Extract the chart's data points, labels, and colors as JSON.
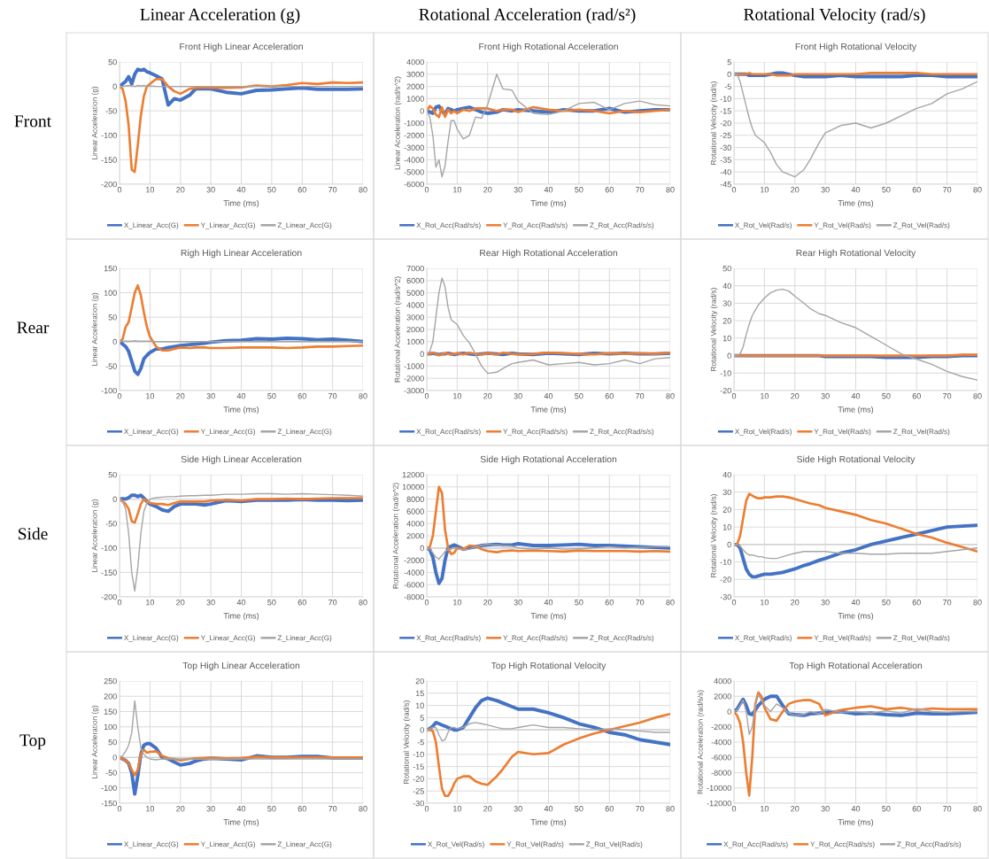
{
  "chart_data": [
    {
      "type": "line",
      "title": "Front High Linear Acceleration",
      "xlabel": "Time (ms)",
      "ylabel": "Linear Acceleration (g)",
      "annotations": [
        "Linear Acceleration (g)",
        "Front"
      ],
      "xlim": [
        0,
        80
      ],
      "xticks": [
        0,
        10,
        20,
        30,
        40,
        50,
        60,
        70,
        80
      ],
      "ylim": [
        -200,
        50
      ],
      "yticks": [
        -200,
        -150,
        -100,
        -50,
        0,
        50
      ],
      "grid": true,
      "legend": "bottom",
      "x": [
        0,
        1,
        2,
        3,
        4,
        5,
        6,
        7,
        8,
        9,
        10,
        12,
        14,
        16,
        18,
        20,
        23,
        25,
        28,
        30,
        35,
        40,
        45,
        50,
        55,
        60,
        65,
        70,
        75,
        80
      ],
      "series": [
        {
          "name": "X_Linear_Acc(G)",
          "color": "#4472c4",
          "values": [
            0,
            5,
            10,
            20,
            5,
            25,
            35,
            33,
            35,
            30,
            28,
            22,
            15,
            -38,
            -25,
            -28,
            -18,
            -5,
            -5,
            -5,
            -12,
            -15,
            -8,
            -7,
            -5,
            -3,
            -6,
            -6,
            -6,
            -5
          ]
        },
        {
          "name": "Y_Linear_Acc(G)",
          "color": "#ed7d31",
          "values": [
            0,
            -5,
            -30,
            -80,
            -170,
            -175,
            -120,
            -60,
            -20,
            0,
            5,
            15,
            15,
            0,
            -10,
            -15,
            -5,
            -3,
            -2,
            -3,
            -3,
            -2,
            2,
            0,
            3,
            7,
            5,
            8,
            7,
            8
          ]
        },
        {
          "name": "Z_Linear_Acc(G)",
          "color": "#a5a5a5",
          "values": [
            0,
            0,
            1,
            2,
            1,
            0,
            2,
            1,
            2,
            0,
            1,
            0,
            0,
            0,
            0,
            0,
            0,
            0,
            0,
            0,
            0,
            0,
            0,
            0,
            0,
            0,
            0,
            0,
            0,
            0
          ]
        }
      ]
    },
    {
      "type": "line",
      "title": "Front High Rotational Acceleration",
      "xlabel": "Time (ms)",
      "ylabel": "Linear Acceleration (rad/s^2)",
      "annotations": [
        "Rotational Acceleration (rad/s²)"
      ],
      "xlim": [
        0,
        80
      ],
      "xticks": [
        0,
        10,
        20,
        30,
        40,
        50,
        60,
        70,
        80
      ],
      "ylim": [
        -6000,
        4000
      ],
      "yticks": [
        -6000,
        -5000,
        -4000,
        -3000,
        -2000,
        -1000,
        0,
        1000,
        2000,
        3000,
        4000
      ],
      "grid": true,
      "legend": "bottom",
      "x": [
        0,
        1,
        2,
        3,
        4,
        5,
        6,
        7,
        8,
        9,
        10,
        12,
        14,
        16,
        18,
        20,
        23,
        25,
        28,
        30,
        35,
        40,
        45,
        50,
        55,
        60,
        65,
        70,
        75,
        80
      ],
      "series": [
        {
          "name": "X_Rot_Acc(Rad/s/s)",
          "color": "#4472c4",
          "values": [
            0,
            -100,
            -200,
            300,
            400,
            0,
            -300,
            200,
            100,
            0,
            100,
            200,
            300,
            100,
            -100,
            -200,
            -100,
            100,
            0,
            100,
            0,
            -100,
            100,
            0,
            0,
            200,
            -100,
            0,
            100,
            100
          ]
        },
        {
          "name": "Y_Rot_Acc(Rad/s/s)",
          "color": "#ed7d31",
          "values": [
            0,
            400,
            200,
            -300,
            -500,
            300,
            -500,
            100,
            -200,
            0,
            -200,
            100,
            0,
            200,
            200,
            200,
            0,
            100,
            100,
            -100,
            300,
            100,
            0,
            100,
            0,
            -200,
            0,
            -100,
            0,
            100
          ]
        },
        {
          "name": "Z_Rot_Acc(Rad/s/s)",
          "color": "#a5a5a5",
          "values": [
            0,
            -500,
            -2000,
            -4600,
            -4000,
            -5400,
            -4500,
            -2500,
            -800,
            -800,
            -1500,
            -2300,
            -2000,
            -500,
            -600,
            500,
            3000,
            1800,
            1700,
            800,
            -200,
            -300,
            0,
            600,
            700,
            100,
            600,
            800,
            500,
            400
          ]
        }
      ]
    },
    {
      "type": "line",
      "title": "Front High Rotational Velocity",
      "xlabel": "Time (ms)",
      "ylabel": "Rotational Velocity (rad/s)",
      "annotations": [
        "Rotational Velocity (rad/s)"
      ],
      "xlim": [
        0,
        80
      ],
      "xticks": [
        0,
        10,
        20,
        30,
        40,
        50,
        60,
        70,
        80
      ],
      "ylim": [
        -45,
        5
      ],
      "yticks": [
        -45,
        -40,
        -35,
        -30,
        -25,
        -20,
        -15,
        -10,
        -5,
        0,
        5
      ],
      "grid": true,
      "legend": "bottom",
      "x": [
        0,
        1,
        2,
        3,
        4,
        5,
        6,
        7,
        8,
        9,
        10,
        12,
        14,
        16,
        18,
        20,
        23,
        25,
        28,
        30,
        35,
        40,
        45,
        50,
        55,
        60,
        65,
        70,
        75,
        80
      ],
      "series": [
        {
          "name": "X_Rot_Vel(Rad/s)",
          "color": "#4472c4",
          "values": [
            0,
            0,
            0,
            0,
            0,
            -0.5,
            -0.5,
            -0.5,
            -0.5,
            -0.5,
            -0.5,
            0,
            0.5,
            0.5,
            0,
            -0.5,
            -1,
            -1,
            -1,
            -1,
            -0.5,
            -1,
            -1,
            -1,
            -1,
            -0.5,
            -0.5,
            -1,
            -1,
            -1
          ]
        },
        {
          "name": "Y_Rot_Vel(Rad/s)",
          "color": "#ed7d31",
          "values": [
            0,
            0,
            0,
            0,
            0,
            0.5,
            0,
            0,
            0,
            0,
            0,
            0,
            -0.5,
            -0.5,
            -0.5,
            0,
            0,
            0,
            0,
            0,
            0,
            0,
            0.5,
            0.5,
            0.5,
            0.5,
            0,
            0,
            0,
            0
          ]
        },
        {
          "name": "Z_Rot_Vel(Rad/s)",
          "color": "#a5a5a5",
          "values": [
            0,
            0,
            -3,
            -8,
            -13,
            -18,
            -22,
            -25,
            -26,
            -27,
            -28,
            -32,
            -37,
            -40,
            -41,
            -42,
            -39,
            -35,
            -28,
            -24,
            -21,
            -20,
            -22,
            -20,
            -17,
            -14,
            -12,
            -8,
            -6,
            -3
          ]
        }
      ]
    },
    {
      "type": "line",
      "title": "Righ High Linear Acceleration",
      "xlabel": "Time (ms)",
      "ylabel": "Linear Acceleration (g)",
      "annotations": [
        "Rear"
      ],
      "xlim": [
        0,
        80
      ],
      "xticks": [
        0,
        10,
        20,
        30,
        40,
        50,
        60,
        70,
        80
      ],
      "ylim": [
        -100,
        150
      ],
      "yticks": [
        -100,
        -50,
        0,
        50,
        100,
        150
      ],
      "grid": true,
      "legend": "bottom",
      "x": [
        0,
        1,
        2,
        3,
        4,
        5,
        6,
        7,
        8,
        9,
        10,
        12,
        14,
        16,
        18,
        20,
        23,
        25,
        28,
        30,
        35,
        40,
        45,
        50,
        55,
        60,
        65,
        70,
        75,
        80
      ],
      "series": [
        {
          "name": "X_Linear_Acc(G)",
          "color": "#4472c4",
          "values": [
            0,
            -5,
            -10,
            -20,
            -40,
            -60,
            -67,
            -55,
            -35,
            -28,
            -22,
            -15,
            -15,
            -12,
            -10,
            -8,
            -6,
            -5,
            -3,
            -1,
            2,
            3,
            6,
            5,
            7,
            6,
            4,
            5,
            3,
            0
          ]
        },
        {
          "name": "Y_Linear_Acc(G)",
          "color": "#ed7d31",
          "values": [
            0,
            5,
            30,
            40,
            70,
            100,
            115,
            95,
            60,
            30,
            10,
            -10,
            -18,
            -18,
            -15,
            -12,
            -13,
            -12,
            -12,
            -13,
            -13,
            -12,
            -12,
            -12,
            -13,
            -12,
            -10,
            -10,
            -9,
            -8
          ]
        },
        {
          "name": "Z_Linear_Acc(G)",
          "color": "#a5a5a5",
          "values": [
            0,
            1,
            1,
            1,
            1,
            2,
            1,
            1,
            1,
            1,
            1,
            0,
            0,
            0,
            0,
            0,
            0,
            0,
            0,
            0,
            0,
            0,
            0,
            0,
            0,
            0,
            0,
            0,
            0,
            0
          ]
        }
      ]
    },
    {
      "type": "line",
      "title": "Rear High Rotational Acceleration",
      "xlabel": "Time (ms)",
      "ylabel": "Rotational Acceleration (rad/s^2)",
      "xlim": [
        0,
        80
      ],
      "xticks": [
        0,
        10,
        20,
        30,
        40,
        50,
        60,
        70,
        80
      ],
      "ylim": [
        -3000,
        7000
      ],
      "yticks": [
        -3000,
        -2000,
        -1000,
        0,
        1000,
        2000,
        3000,
        4000,
        5000,
        6000,
        7000
      ],
      "grid": true,
      "legend": "bottom",
      "x": [
        0,
        1,
        2,
        3,
        4,
        5,
        6,
        7,
        8,
        9,
        10,
        12,
        14,
        16,
        18,
        20,
        23,
        25,
        28,
        30,
        35,
        40,
        45,
        50,
        55,
        60,
        65,
        70,
        75,
        80
      ],
      "series": [
        {
          "name": "X_Rot_Acc(Rad/s/s)",
          "color": "#4472c4",
          "values": [
            0,
            0,
            50,
            0,
            -50,
            0,
            0,
            50,
            0,
            -50,
            0,
            50,
            0,
            -50,
            0,
            50,
            0,
            -50,
            50,
            0,
            -50,
            50,
            0,
            -50,
            50,
            0,
            50,
            0,
            0,
            50
          ]
        },
        {
          "name": "Y_Rot_Acc(Rad/s/s)",
          "color": "#ed7d31",
          "values": [
            0,
            0,
            100,
            0,
            -100,
            0,
            50,
            0,
            -50,
            0,
            50,
            -50,
            100,
            0,
            -50,
            50,
            -50,
            100,
            0,
            -50,
            0,
            100,
            50,
            0,
            -50,
            50,
            0,
            50,
            0,
            100
          ]
        },
        {
          "name": "Z_Rot_Acc(Rad/s/s)",
          "color": "#a5a5a5",
          "values": [
            0,
            200,
            1000,
            3000,
            5000,
            6200,
            5500,
            3800,
            2800,
            2600,
            2400,
            1500,
            900,
            0,
            -1000,
            -1600,
            -1500,
            -1200,
            -800,
            -700,
            -500,
            -900,
            -800,
            -700,
            -900,
            -800,
            -500,
            -800,
            -400,
            -300
          ]
        }
      ]
    },
    {
      "type": "line",
      "title": "Rear High Rotational Velocity",
      "xlabel": "Time (ms)",
      "ylabel": "Rotational Velocity (rad/s)",
      "xlim": [
        0,
        80
      ],
      "xticks": [
        0,
        10,
        20,
        30,
        40,
        50,
        60,
        70,
        80
      ],
      "ylim": [
        -20,
        50
      ],
      "yticks": [
        -20,
        -10,
        0,
        10,
        20,
        30,
        40,
        50
      ],
      "grid": true,
      "legend": "bottom",
      "x": [
        0,
        1,
        2,
        3,
        4,
        5,
        6,
        7,
        8,
        9,
        10,
        12,
        14,
        16,
        18,
        20,
        23,
        25,
        28,
        30,
        35,
        40,
        45,
        50,
        55,
        60,
        65,
        70,
        75,
        80
      ],
      "series": [
        {
          "name": "X_Rot_Vel(Rad/s)",
          "color": "#4472c4",
          "values": [
            0,
            0,
            0,
            0,
            0,
            0,
            0,
            0,
            0,
            0,
            0,
            0,
            0,
            0,
            0,
            0,
            0,
            0,
            0,
            -0.5,
            -0.5,
            -0.5,
            -0.5,
            -1,
            -1,
            -1,
            -0.5,
            -0.5,
            0,
            0
          ]
        },
        {
          "name": "Y_Rot_Vel(Rad/s)",
          "color": "#ed7d31",
          "values": [
            0,
            0,
            0,
            0,
            0,
            0,
            0,
            0,
            0,
            0,
            0,
            0,
            0,
            0,
            0,
            0,
            0,
            0,
            0,
            0,
            0,
            0,
            0,
            0,
            0,
            0,
            0,
            0,
            0.5,
            0.5
          ]
        },
        {
          "name": "Z_Rot_Vel(Rad/s)",
          "color": "#a5a5a5",
          "values": [
            0,
            0,
            1,
            5,
            12,
            18,
            23,
            26,
            29,
            31,
            33,
            36,
            37.5,
            38,
            37,
            34,
            30,
            27,
            24,
            23,
            19,
            16,
            11,
            6,
            1,
            -2,
            -5,
            -9,
            -12,
            -14
          ]
        }
      ]
    },
    {
      "type": "line",
      "title": "Side High Linear Acceleration",
      "xlabel": "Time (ms)",
      "ylabel": "Linear Acceleration (g)",
      "annotations": [
        "Side"
      ],
      "xlim": [
        0,
        80
      ],
      "xticks": [
        0,
        10,
        20,
        30,
        40,
        50,
        60,
        70,
        80
      ],
      "ylim": [
        -200,
        50
      ],
      "yticks": [
        -200,
        -150,
        -100,
        -50,
        0,
        50
      ],
      "grid": true,
      "legend": "bottom",
      "x": [
        0,
        1,
        2,
        3,
        4,
        5,
        6,
        7,
        8,
        9,
        10,
        12,
        14,
        16,
        18,
        20,
        23,
        25,
        28,
        30,
        35,
        40,
        45,
        50,
        55,
        60,
        65,
        70,
        75,
        80
      ],
      "series": [
        {
          "name": "X_Linear_Acc(G)",
          "color": "#4472c4",
          "values": [
            0,
            1,
            0,
            3,
            8,
            8,
            5,
            8,
            2,
            -5,
            -10,
            -15,
            -22,
            -25,
            -15,
            -10,
            -10,
            -10,
            -12,
            -10,
            -3,
            -5,
            -2,
            -2,
            -2,
            -1,
            -2,
            -2,
            -3,
            -2
          ]
        },
        {
          "name": "Y_Linear_Acc(G)",
          "color": "#ed7d31",
          "values": [
            0,
            -5,
            -10,
            -20,
            -45,
            -48,
            -30,
            -10,
            0,
            -5,
            -8,
            -10,
            -10,
            -12,
            -8,
            -5,
            -5,
            -5,
            -5,
            -3,
            -2,
            -3,
            0,
            0,
            1,
            0,
            1,
            2,
            2,
            2
          ]
        },
        {
          "name": "Z_Linear_Acc(G)",
          "color": "#a5a5a5",
          "values": [
            0,
            -5,
            -20,
            -70,
            -150,
            -188,
            -140,
            -70,
            -25,
            -8,
            0,
            3,
            4,
            5,
            5,
            6,
            7,
            7,
            8,
            8,
            10,
            10,
            11,
            11,
            10,
            11,
            10,
            9,
            8,
            6
          ]
        }
      ]
    },
    {
      "type": "line",
      "title": "Side High Rotational Acceleration",
      "xlabel": "Time (ms)",
      "ylabel": "Rotational Acceleration (rad/s^2)",
      "xlim": [
        0,
        80
      ],
      "xticks": [
        0,
        10,
        20,
        30,
        40,
        50,
        60,
        70,
        80
      ],
      "ylim": [
        -8000,
        12000
      ],
      "yticks": [
        -8000,
        -6000,
        -4000,
        -2000,
        0,
        2000,
        4000,
        6000,
        8000,
        10000,
        12000
      ],
      "grid": true,
      "legend": "bottom",
      "x": [
        0,
        1,
        2,
        3,
        4,
        5,
        6,
        7,
        8,
        9,
        10,
        12,
        14,
        16,
        18,
        20,
        23,
        25,
        28,
        30,
        35,
        40,
        45,
        50,
        55,
        60,
        65,
        70,
        75,
        80
      ],
      "series": [
        {
          "name": "X_Rot_Acc(Rad/s/s)",
          "color": "#4472c4",
          "values": [
            0,
            -300,
            -1500,
            -4000,
            -5800,
            -5000,
            -2000,
            0,
            300,
            500,
            300,
            -200,
            0,
            200,
            400,
            500,
            600,
            500,
            500,
            700,
            400,
            400,
            500,
            600,
            400,
            400,
            300,
            200,
            100,
            0
          ]
        },
        {
          "name": "Y_Rot_Acc(Rad/s/s)",
          "color": "#ed7d31",
          "values": [
            0,
            200,
            2000,
            6000,
            10000,
            9000,
            3000,
            0,
            -1000,
            -800,
            0,
            -200,
            400,
            300,
            -200,
            -500,
            -700,
            -500,
            -400,
            -500,
            -400,
            -500,
            -600,
            -400,
            -500,
            -500,
            -500,
            -600,
            -500,
            -600
          ]
        },
        {
          "name": "Z_Rot_Acc(Rad/s/s)",
          "color": "#a5a5a5",
          "values": [
            0,
            -200,
            -800,
            -1500,
            -1800,
            -1200,
            -600,
            -300,
            -200,
            0,
            -200,
            -300,
            -200,
            200,
            400,
            600,
            500,
            400,
            300,
            0,
            -200,
            0,
            -200,
            -100,
            0,
            200,
            0,
            100,
            200,
            200
          ]
        }
      ]
    },
    {
      "type": "line",
      "title": "Side High Rotational Velocity",
      "xlabel": "Time (ms)",
      "ylabel": "Rotational Velocity (rad/s)",
      "xlim": [
        0,
        80
      ],
      "xticks": [
        0,
        10,
        20,
        30,
        40,
        50,
        60,
        70,
        80
      ],
      "ylim": [
        -30,
        40
      ],
      "yticks": [
        -30,
        -20,
        -10,
        0,
        10,
        20,
        30,
        40
      ],
      "grid": true,
      "legend": "bottom",
      "x": [
        0,
        1,
        2,
        3,
        4,
        5,
        6,
        7,
        8,
        9,
        10,
        12,
        14,
        16,
        18,
        20,
        23,
        25,
        28,
        30,
        35,
        40,
        45,
        50,
        55,
        60,
        65,
        70,
        75,
        80
      ],
      "series": [
        {
          "name": "X_Rot_Vel(Rad/s)",
          "color": "#4472c4",
          "values": [
            0,
            0,
            -2,
            -8,
            -14,
            -17,
            -18.5,
            -18.5,
            -18,
            -17.5,
            -17,
            -17,
            -16.5,
            -16,
            -15,
            -14,
            -12,
            -11,
            -9,
            -8,
            -5,
            -3,
            0,
            2,
            4,
            6,
            8,
            10,
            10.5,
            11
          ]
        },
        {
          "name": "Y_Rot_Vel(Rad/s)",
          "color": "#ed7d31",
          "values": [
            0,
            0,
            5,
            15,
            25,
            29,
            28,
            27,
            26.5,
            26.5,
            27,
            27,
            27.5,
            27.5,
            27,
            26,
            24.5,
            23.5,
            22.5,
            21,
            19,
            17,
            14,
            12,
            9,
            6,
            4,
            1,
            -1.5,
            -4
          ]
        },
        {
          "name": "Z_Rot_Vel(Rad/s)",
          "color": "#a5a5a5",
          "values": [
            0,
            0,
            -1,
            -3,
            -5,
            -6,
            -6,
            -6.5,
            -7,
            -7,
            -7.5,
            -8,
            -8,
            -7,
            -6,
            -5,
            -4,
            -4,
            -4,
            -4,
            -5,
            -5,
            -5.5,
            -5.5,
            -5,
            -5,
            -5,
            -4,
            -3,
            -2
          ]
        }
      ]
    },
    {
      "type": "line",
      "title": "Top High Linear Acceleration",
      "xlabel": "Time (ms)",
      "ylabel": "Linear Acceleration (g)",
      "annotations": [
        "Top"
      ],
      "xlim": [
        0,
        80
      ],
      "xticks": [
        0,
        10,
        20,
        30,
        40,
        50,
        60,
        70,
        80
      ],
      "ylim": [
        -150,
        250
      ],
      "yticks": [
        -150,
        -100,
        -50,
        0,
        50,
        100,
        150,
        200,
        250
      ],
      "grid": true,
      "legend": "bottom",
      "x": [
        0,
        1,
        2,
        3,
        4,
        5,
        6,
        7,
        8,
        9,
        10,
        12,
        14,
        16,
        18,
        20,
        23,
        25,
        28,
        30,
        35,
        40,
        45,
        50,
        55,
        60,
        65,
        70,
        75,
        80
      ],
      "series": [
        {
          "name": "X_Linear_Acc(G)",
          "color": "#4472c4",
          "values": [
            0,
            -5,
            -10,
            -20,
            -50,
            -120,
            -60,
            10,
            40,
            45,
            45,
            30,
            0,
            -5,
            -15,
            -25,
            -20,
            -12,
            -5,
            -3,
            -5,
            -8,
            5,
            0,
            0,
            3,
            3,
            -2,
            -2,
            -2
          ]
        },
        {
          "name": "Y_Linear_Acc(G)",
          "color": "#ed7d31",
          "values": [
            0,
            -5,
            -10,
            -20,
            -40,
            -58,
            -40,
            10,
            25,
            15,
            18,
            20,
            5,
            -3,
            -5,
            -10,
            -5,
            -3,
            -2,
            -2,
            -3,
            -2,
            2,
            0,
            0,
            0,
            0,
            0,
            0,
            0
          ]
        },
        {
          "name": "Z_Linear_Acc(G)",
          "color": "#a5a5a5",
          "values": [
            0,
            5,
            20,
            40,
            80,
            185,
            100,
            30,
            10,
            0,
            -5,
            -8,
            -5,
            -5,
            -5,
            -5,
            -5,
            -6,
            -6,
            -6,
            -6,
            -5,
            -5,
            -5,
            -5,
            -5,
            -5,
            -5,
            -5,
            -5
          ]
        }
      ]
    },
    {
      "type": "line",
      "title": "Top High Rotational Velocity",
      "xlabel": "Time (ms)",
      "ylabel": "Rotational Velocity (rad/s)",
      "xlim": [
        0,
        80
      ],
      "xticks": [
        0,
        10,
        20,
        30,
        40,
        50,
        60,
        70,
        80
      ],
      "ylim": [
        -30,
        20
      ],
      "yticks": [
        -30,
        -25,
        -20,
        -15,
        -10,
        -5,
        0,
        5,
        10,
        15,
        20
      ],
      "grid": true,
      "legend": "bottom",
      "x": [
        0,
        1,
        2,
        3,
        4,
        5,
        6,
        7,
        8,
        9,
        10,
        12,
        14,
        16,
        18,
        20,
        23,
        25,
        28,
        30,
        35,
        40,
        45,
        50,
        55,
        60,
        65,
        70,
        75,
        80
      ],
      "series": [
        {
          "name": "X_Rot_Vel(Rad/s)",
          "color": "#4472c4",
          "values": [
            0,
            0.5,
            1.5,
            3,
            2.5,
            2,
            1.5,
            1,
            0.5,
            0,
            0,
            1,
            5,
            9,
            12,
            13,
            12,
            11,
            9.5,
            8.5,
            8.5,
            7,
            5,
            2.5,
            1,
            -1,
            -2,
            -4,
            -5,
            -6
          ]
        },
        {
          "name": "Y_Rot_Vel(Rad/s)",
          "color": "#ed7d31",
          "values": [
            0,
            0,
            -0.5,
            -5,
            -15,
            -24,
            -27,
            -27,
            -25,
            -22,
            -20,
            -19,
            -19,
            -21,
            -22,
            -22.5,
            -19,
            -16,
            -11,
            -9,
            -10,
            -9.5,
            -6,
            -3.5,
            -1.5,
            0,
            1.5,
            3,
            5,
            6.5
          ]
        },
        {
          "name": "Z_Rot_Vel(Rad/s)",
          "color": "#a5a5a5",
          "values": [
            0,
            0.5,
            1,
            1,
            -2,
            -4.5,
            -4,
            -1,
            1,
            1,
            0.5,
            1,
            2.5,
            3,
            2.5,
            2,
            1,
            0.5,
            0.5,
            1,
            2,
            1,
            1,
            0.5,
            0,
            0.5,
            0,
            -0.5,
            -1,
            -1
          ]
        }
      ]
    },
    {
      "type": "line",
      "title": "Top High Rotational Acceleration",
      "xlabel": "Time (ms)",
      "ylabel": "Rotational Acceleration (rad/s/s)",
      "xlim": [
        0,
        80
      ],
      "xticks": [
        0,
        10,
        20,
        30,
        40,
        50,
        60,
        70,
        80
      ],
      "ylim": [
        -12000,
        4000
      ],
      "yticks": [
        -12000,
        -10000,
        -8000,
        -6000,
        -4000,
        -2000,
        0,
        2000,
        4000
      ],
      "grid": true,
      "legend": "bottom",
      "x": [
        0,
        1,
        2,
        3,
        4,
        5,
        6,
        7,
        8,
        9,
        10,
        12,
        14,
        16,
        18,
        20,
        23,
        25,
        28,
        30,
        35,
        40,
        45,
        50,
        55,
        60,
        65,
        70,
        75,
        80
      ],
      "series": [
        {
          "name": "X_Rot_Acc(Rad/s/s)",
          "color": "#4472c4",
          "values": [
            0,
            300,
            1000,
            1600,
            800,
            -300,
            -400,
            200,
            800,
            1200,
            1600,
            2000,
            2000,
            800,
            -300,
            -400,
            -500,
            -300,
            -200,
            -100,
            0,
            -300,
            -200,
            -400,
            -500,
            -200,
            -300,
            -300,
            -200,
            -100
          ]
        },
        {
          "name": "Y_Rot_Acc(Rad/s/s)",
          "color": "#ed7d31",
          "values": [
            0,
            -500,
            -1500,
            -4000,
            -8000,
            -11000,
            -6000,
            1000,
            2500,
            2000,
            500,
            -1000,
            -1200,
            0,
            1000,
            1300,
            1500,
            1500,
            1000,
            -500,
            200,
            500,
            700,
            300,
            500,
            200,
            400,
            300,
            300,
            300
          ]
        },
        {
          "name": "Z_Rot_Acc(Rad/s/s)",
          "color": "#a5a5a5",
          "values": [
            0,
            200,
            800,
            1500,
            0,
            -3000,
            -2000,
            1000,
            2200,
            1500,
            800,
            0,
            1000,
            500,
            -200,
            -500,
            -400,
            0,
            -300,
            300,
            -100,
            0,
            -200,
            100,
            -200,
            400,
            0,
            -100,
            0,
            0
          ]
        }
      ]
    }
  ]
}
